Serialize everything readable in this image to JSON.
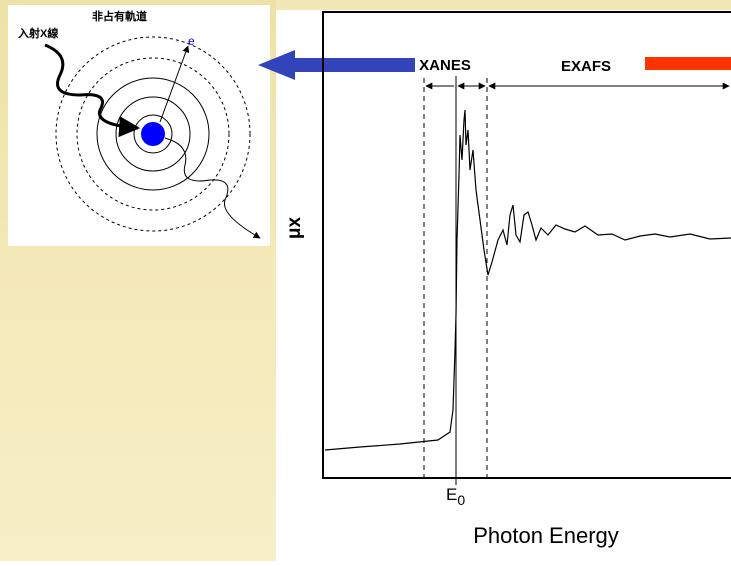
{
  "inset": {
    "incident_label": "入射X線",
    "orbital_label": "非占有軌道",
    "electron_label": "e"
  },
  "spectrum": {
    "xanes_label": "XANES",
    "exafs_label": "EXAFS",
    "y_axis_label": "μx",
    "edge_label": "E",
    "edge_subscript": "0",
    "x_axis_label": "Photon Energy"
  }
}
